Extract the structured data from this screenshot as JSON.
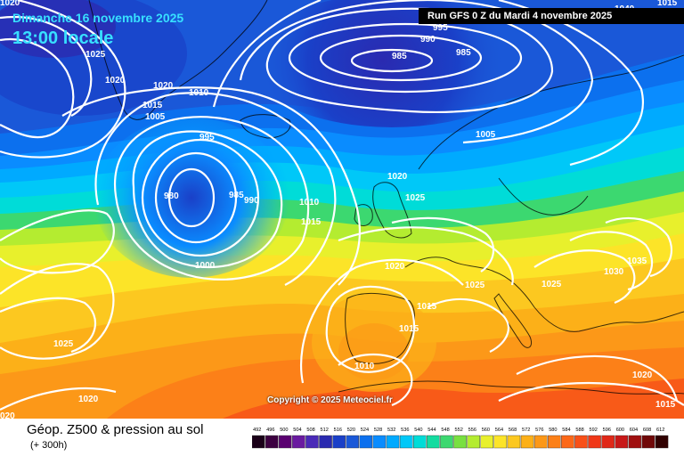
{
  "header": {
    "date_label": "Dimanche 16 novembre 2025",
    "time_label": "13:00 locale",
    "run_label": "Run GFS 0 Z du Mardi 4 novembre 2025"
  },
  "copyright": "Copyright © 2025 Meteociel.fr",
  "footer": {
    "title": "Géop. Z500 & pression au sol",
    "lead_time": "(+ 300h)"
  },
  "color_scale": {
    "labels": [
      "492",
      "496",
      "500",
      "504",
      "508",
      "512",
      "516",
      "520",
      "524",
      "528",
      "532",
      "536",
      "540",
      "544",
      "548",
      "552",
      "556",
      "560",
      "564",
      "568",
      "572",
      "576",
      "580",
      "584",
      "588",
      "592",
      "596",
      "600",
      "604",
      "608",
      "612"
    ],
    "colors": [
      "#1a0018",
      "#3c0040",
      "#5a0070",
      "#6a1aa0",
      "#4a2ab8",
      "#2a2ab0",
      "#1a40c8",
      "#1a58d8",
      "#0c70ee",
      "#0a8cff",
      "#00aaff",
      "#00c8f8",
      "#00dcd8",
      "#14dca0",
      "#3cd870",
      "#78e040",
      "#b4ec30",
      "#e8f02c",
      "#fce428",
      "#fcc820",
      "#fcb018",
      "#fc9818",
      "#fc8018",
      "#fc6818",
      "#f85018",
      "#f03818",
      "#e02818",
      "#c81818",
      "#a01010",
      "#700808",
      "#300000"
    ]
  },
  "pressure_labels": [
    {
      "text": "1025"
    },
    {
      "text": "1020"
    },
    {
      "text": "1020"
    },
    {
      "text": "1010"
    },
    {
      "text": "1015"
    },
    {
      "text": "1005"
    },
    {
      "text": "995"
    },
    {
      "text": "990"
    },
    {
      "text": "985"
    },
    {
      "text": "985"
    },
    {
      "text": "995"
    },
    {
      "text": "1005"
    },
    {
      "text": "980"
    },
    {
      "text": "985"
    },
    {
      "text": "990"
    },
    {
      "text": "1010"
    },
    {
      "text": "1015"
    },
    {
      "text": "1000"
    },
    {
      "text": "1020"
    },
    {
      "text": "1025"
    },
    {
      "text": "1020"
    },
    {
      "text": "1025"
    },
    {
      "text": "1015"
    },
    {
      "text": "1015"
    },
    {
      "text": "1010"
    },
    {
      "text": "1025"
    },
    {
      "text": "1030"
    },
    {
      "text": "1035"
    },
    {
      "text": "1025"
    },
    {
      "text": "1020"
    },
    {
      "text": "1020"
    },
    {
      "text": "020"
    },
    {
      "text": "1015"
    },
    {
      "text": "1020"
    },
    {
      "text": "1040"
    },
    {
      "text": "1015"
    }
  ]
}
